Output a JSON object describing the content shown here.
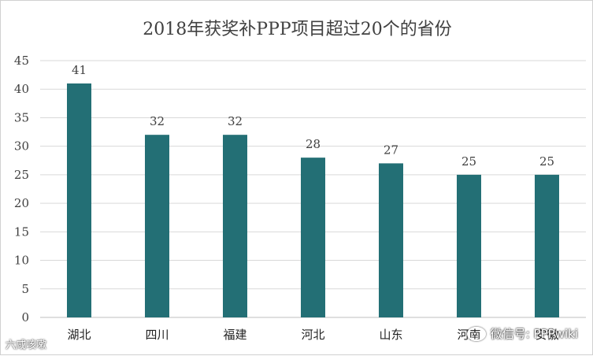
{
  "chart_data": {
    "type": "bar",
    "title": "2018年获奖补PPP项目超过20个的省份",
    "categories": [
      "湖北",
      "四川",
      "福建",
      "河北",
      "山东",
      "河南",
      "安徽"
    ],
    "values": [
      41,
      32,
      32,
      28,
      27,
      25,
      25
    ],
    "ylim": [
      0,
      45
    ],
    "yticks": [
      0,
      5,
      10,
      15,
      20,
      25,
      30,
      35,
      40,
      45
    ],
    "grid": true,
    "bar_color": "#236f75",
    "grid_color": "#d9d9d9"
  },
  "watermark": {
    "right_text": "微信号: PPPwiki",
    "left_text": "六咸咳嗽"
  }
}
